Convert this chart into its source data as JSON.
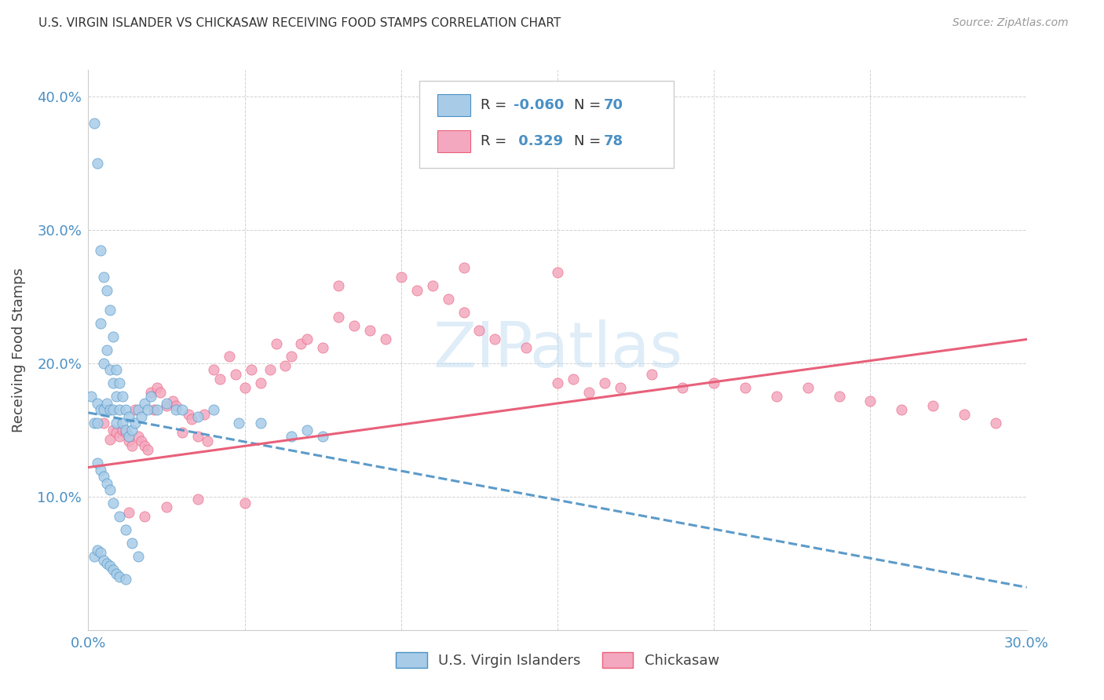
{
  "title": "U.S. VIRGIN ISLANDER VS CHICKASAW RECEIVING FOOD STAMPS CORRELATION CHART",
  "source": "Source: ZipAtlas.com",
  "ylabel": "Receiving Food Stamps",
  "x_min": 0.0,
  "x_max": 0.3,
  "y_min": 0.0,
  "y_max": 0.42,
  "legend_r1": "-0.060",
  "legend_n1": "70",
  "legend_r2": "0.329",
  "legend_n2": "78",
  "color_blue": "#a8cce8",
  "color_pink": "#f4a8c0",
  "color_blue_line": "#4a90c4",
  "color_pink_line": "#e8607a",
  "legend_label1": "U.S. Virgin Islanders",
  "legend_label2": "Chickasaw",
  "blue_line_y0": 0.163,
  "blue_line_y1": 0.032,
  "pink_line_y0": 0.122,
  "pink_line_y1": 0.218,
  "blue_scatter_x": [
    0.001,
    0.002,
    0.002,
    0.003,
    0.003,
    0.003,
    0.004,
    0.004,
    0.004,
    0.005,
    0.005,
    0.005,
    0.006,
    0.006,
    0.006,
    0.007,
    0.007,
    0.007,
    0.008,
    0.008,
    0.008,
    0.009,
    0.009,
    0.009,
    0.01,
    0.01,
    0.011,
    0.011,
    0.012,
    0.012,
    0.013,
    0.013,
    0.014,
    0.015,
    0.016,
    0.017,
    0.018,
    0.019,
    0.02,
    0.022,
    0.025,
    0.028,
    0.03,
    0.035,
    0.04,
    0.048,
    0.055,
    0.065,
    0.07,
    0.075,
    0.003,
    0.004,
    0.005,
    0.006,
    0.007,
    0.008,
    0.01,
    0.012,
    0.014,
    0.016,
    0.002,
    0.003,
    0.004,
    0.005,
    0.006,
    0.007,
    0.008,
    0.009,
    0.01,
    0.012
  ],
  "blue_scatter_y": [
    0.175,
    0.38,
    0.155,
    0.35,
    0.17,
    0.155,
    0.285,
    0.23,
    0.165,
    0.265,
    0.2,
    0.165,
    0.255,
    0.21,
    0.17,
    0.24,
    0.195,
    0.165,
    0.22,
    0.185,
    0.165,
    0.195,
    0.175,
    0.155,
    0.185,
    0.165,
    0.175,
    0.155,
    0.165,
    0.15,
    0.16,
    0.145,
    0.15,
    0.155,
    0.165,
    0.16,
    0.17,
    0.165,
    0.175,
    0.165,
    0.17,
    0.165,
    0.165,
    0.16,
    0.165,
    0.155,
    0.155,
    0.145,
    0.15,
    0.145,
    0.125,
    0.12,
    0.115,
    0.11,
    0.105,
    0.095,
    0.085,
    0.075,
    0.065,
    0.055,
    0.055,
    0.06,
    0.058,
    0.052,
    0.05,
    0.048,
    0.045,
    0.042,
    0.04,
    0.038
  ],
  "pink_scatter_x": [
    0.005,
    0.007,
    0.008,
    0.009,
    0.01,
    0.011,
    0.012,
    0.013,
    0.014,
    0.015,
    0.016,
    0.017,
    0.018,
    0.019,
    0.02,
    0.021,
    0.022,
    0.023,
    0.025,
    0.027,
    0.028,
    0.03,
    0.032,
    0.033,
    0.035,
    0.037,
    0.038,
    0.04,
    0.042,
    0.045,
    0.047,
    0.05,
    0.052,
    0.055,
    0.058,
    0.06,
    0.063,
    0.065,
    0.068,
    0.07,
    0.075,
    0.08,
    0.085,
    0.09,
    0.095,
    0.1,
    0.105,
    0.11,
    0.115,
    0.12,
    0.125,
    0.13,
    0.14,
    0.15,
    0.155,
    0.16,
    0.165,
    0.17,
    0.18,
    0.19,
    0.2,
    0.21,
    0.22,
    0.23,
    0.24,
    0.25,
    0.26,
    0.27,
    0.28,
    0.29,
    0.013,
    0.018,
    0.025,
    0.035,
    0.05,
    0.08,
    0.12,
    0.15
  ],
  "pink_scatter_y": [
    0.155,
    0.143,
    0.15,
    0.148,
    0.145,
    0.15,
    0.148,
    0.142,
    0.138,
    0.165,
    0.145,
    0.142,
    0.138,
    0.135,
    0.178,
    0.165,
    0.182,
    0.178,
    0.168,
    0.172,
    0.168,
    0.148,
    0.162,
    0.158,
    0.145,
    0.162,
    0.142,
    0.195,
    0.188,
    0.205,
    0.192,
    0.182,
    0.195,
    0.185,
    0.195,
    0.215,
    0.198,
    0.205,
    0.215,
    0.218,
    0.212,
    0.235,
    0.228,
    0.225,
    0.218,
    0.265,
    0.255,
    0.258,
    0.248,
    0.238,
    0.225,
    0.218,
    0.212,
    0.185,
    0.188,
    0.178,
    0.185,
    0.182,
    0.192,
    0.182,
    0.185,
    0.182,
    0.175,
    0.182,
    0.175,
    0.172,
    0.165,
    0.168,
    0.162,
    0.155,
    0.088,
    0.085,
    0.092,
    0.098,
    0.095,
    0.258,
    0.272,
    0.268
  ]
}
